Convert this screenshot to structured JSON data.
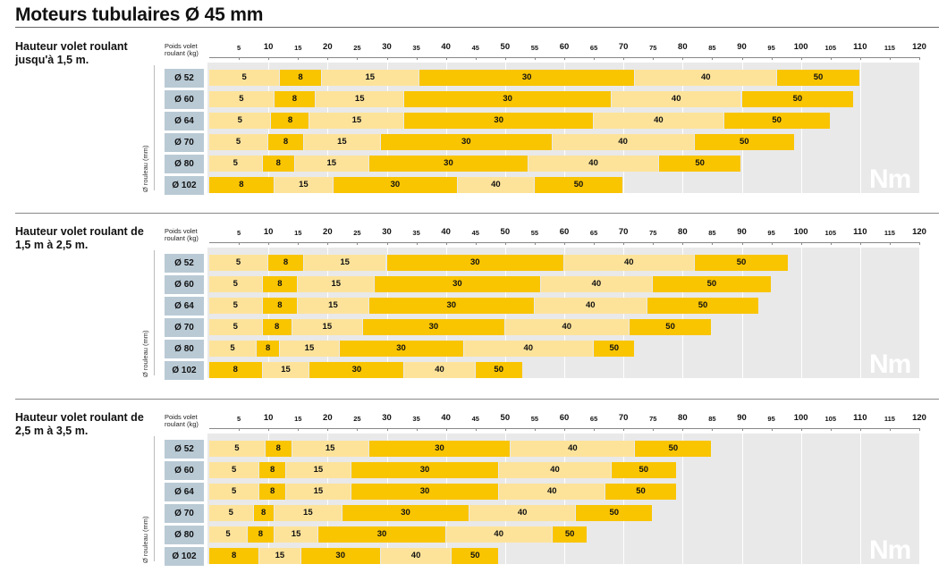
{
  "page_title": "Moteurs tubulaires Ø 45 mm",
  "axis_title": "Poids volet roulant (kg)",
  "row_axis_label": "Ø rouleau (mm)",
  "unit_label": "Nm",
  "colors": {
    "light": "#fde39a",
    "dark": "#f9c400",
    "grid": "#e9e9e9",
    "row_label": "#b9cad5"
  },
  "chart_data": [
    {
      "type": "bar",
      "title": "Hauteur volet roulant jusqu'à 1,5 m.",
      "xlabel": "Poids volet roulant (kg)",
      "ylabel": "Ø rouleau (mm)",
      "xlim": [
        0,
        120
      ],
      "x_ticks": [
        5,
        10,
        15,
        20,
        25,
        30,
        35,
        40,
        45,
        50,
        55,
        60,
        65,
        70,
        75,
        80,
        85,
        90,
        95,
        100,
        105,
        110,
        115,
        120
      ],
      "categories": [
        "Ø 52",
        "Ø 60",
        "Ø 64",
        "Ø 70",
        "Ø 80",
        "Ø 102"
      ],
      "series": [
        {
          "name": "5",
          "values": [
            12,
            11,
            10.5,
            10,
            9,
            null
          ]
        },
        {
          "name": "8",
          "values": [
            19,
            18,
            17,
            16,
            14.5,
            11
          ]
        },
        {
          "name": "15",
          "values": [
            35.5,
            33,
            33,
            29,
            27,
            21
          ]
        },
        {
          "name": "30",
          "values": [
            72,
            68,
            65,
            58,
            54,
            42
          ]
        },
        {
          "name": "40",
          "values": [
            96,
            90,
            87,
            82,
            76,
            55
          ]
        },
        {
          "name": "50",
          "values": [
            110,
            109,
            105,
            99,
            90,
            70
          ]
        }
      ]
    },
    {
      "type": "bar",
      "title": "Hauteur volet roulant de 1,5 m à 2,5 m.",
      "xlabel": "Poids volet roulant (kg)",
      "ylabel": "Ø rouleau (mm)",
      "xlim": [
        0,
        120
      ],
      "x_ticks": [
        5,
        10,
        15,
        20,
        25,
        30,
        35,
        40,
        45,
        50,
        55,
        60,
        65,
        70,
        75,
        80,
        85,
        90,
        95,
        100,
        105,
        110,
        115,
        120
      ],
      "categories": [
        "Ø 52",
        "Ø 60",
        "Ø 64",
        "Ø 70",
        "Ø 80",
        "Ø 102"
      ],
      "series": [
        {
          "name": "5",
          "values": [
            10,
            9,
            9,
            9,
            8,
            null
          ]
        },
        {
          "name": "8",
          "values": [
            16,
            15,
            15,
            14,
            12,
            9
          ]
        },
        {
          "name": "15",
          "values": [
            30,
            28,
            27,
            26,
            22,
            17
          ]
        },
        {
          "name": "30",
          "values": [
            60,
            56,
            55,
            50,
            43,
            33
          ]
        },
        {
          "name": "40",
          "values": [
            82,
            75,
            74,
            71,
            65,
            45
          ]
        },
        {
          "name": "50",
          "values": [
            98,
            95,
            93,
            85,
            72,
            53
          ]
        }
      ]
    },
    {
      "type": "bar",
      "title": "Hauteur volet roulant de 2,5 m à 3,5 m.",
      "xlabel": "Poids volet roulant (kg)",
      "ylabel": "Ø rouleau (mm)",
      "xlim": [
        0,
        120
      ],
      "x_ticks": [
        5,
        10,
        15,
        20,
        25,
        30,
        35,
        40,
        45,
        50,
        55,
        60,
        65,
        70,
        75,
        80,
        85,
        90,
        95,
        100,
        105,
        110,
        115,
        120
      ],
      "categories": [
        "Ø 52",
        "Ø 60",
        "Ø 64",
        "Ø 70",
        "Ø 80",
        "Ø 102"
      ],
      "series": [
        {
          "name": "5",
          "values": [
            9.5,
            8.5,
            8.5,
            7.5,
            6.5,
            null
          ]
        },
        {
          "name": "8",
          "values": [
            14,
            13,
            13,
            11,
            11,
            8.5
          ]
        },
        {
          "name": "15",
          "values": [
            27,
            24,
            24,
            22.5,
            18.5,
            15.5
          ]
        },
        {
          "name": "30",
          "values": [
            51,
            49,
            49,
            44,
            40,
            29
          ]
        },
        {
          "name": "40",
          "values": [
            72,
            68,
            67,
            62,
            58,
            41
          ]
        },
        {
          "name": "50",
          "values": [
            85,
            79,
            79,
            75,
            64,
            49
          ]
        }
      ]
    }
  ]
}
